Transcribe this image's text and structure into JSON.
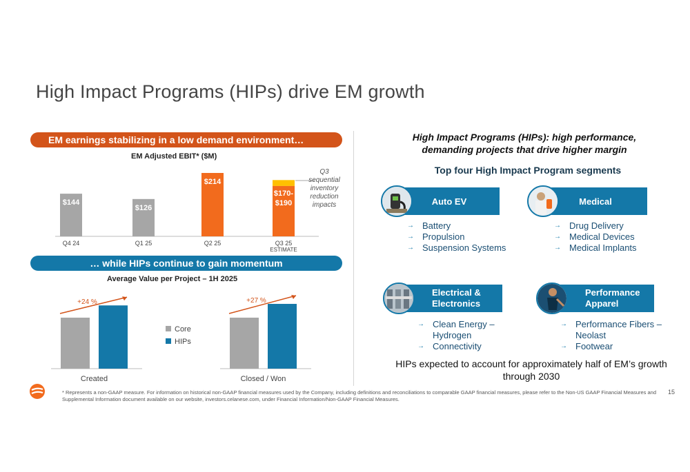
{
  "title": "High Impact Programs (HIPs) drive EM growth",
  "left": {
    "banner_top": "EM earnings stabilizing in a low demand environment…",
    "banner_bottom": "… while HIPs continue to gain momentum",
    "q3_note": "Q3 sequential inventory reduction impacts"
  },
  "chart_data": [
    {
      "type": "bar",
      "title": "EM Adjusted EBIT* ($M)",
      "categories": [
        "Q4 24",
        "Q1 25",
        "Q2 25",
        "Q3 25"
      ],
      "category_sublabels": [
        "",
        "",
        "",
        "ESTIMATE"
      ],
      "values": [
        144,
        126,
        214,
        190
      ],
      "range_low": [
        null,
        null,
        null,
        170
      ],
      "data_labels": [
        "$144",
        "$126",
        "$214",
        "$170-\n$190"
      ],
      "colors": [
        "#a6a6a6",
        "#a6a6a6",
        "#f26b1d",
        "#f26b1d"
      ],
      "range_color": "#ffc000",
      "ylim": [
        0,
        214
      ]
    },
    {
      "type": "bar",
      "title": "Average Value per Project – 1H 2025",
      "categories": [
        "Created",
        "Closed / Won"
      ],
      "series": [
        {
          "name": "Core",
          "values": [
            100,
            100
          ],
          "color": "#a6a6a6"
        },
        {
          "name": "HIPs",
          "values": [
            124,
            127
          ],
          "color": "#1478a8"
        }
      ],
      "annotations": [
        "+24 %",
        "+27 %"
      ],
      "legend": "center"
    }
  ],
  "right": {
    "heading": "High Impact Programs (HIPs): high performance, demanding projects that drive higher margin",
    "subheading": "Top four High Impact Program segments",
    "segments": [
      {
        "label": "Auto EV",
        "icon": "ev-charger-icon",
        "items": [
          "Battery",
          "Propulsion",
          "Suspension Systems"
        ]
      },
      {
        "label": "Medical",
        "icon": "medical-icon",
        "items": [
          "Drug Delivery",
          "Medical Devices",
          "Medical Implants"
        ]
      },
      {
        "label": "Electrical & Electronics",
        "icon": "electronics-icon",
        "items": [
          "Clean Energy – Hydrogen",
          "Connectivity"
        ]
      },
      {
        "label": "Performance Apparel",
        "icon": "apparel-icon",
        "items": [
          "Performance Fibers – Neolast",
          "Footwear"
        ]
      }
    ],
    "note": "HIPs expected to account for approximately half of EM’s growth through 2030"
  },
  "footer": {
    "footnote": "* Represents a non-GAAP measure. For information on historical non-GAAP financial measures used by the Company, including definitions and reconciliations to comparable GAAP financial measures, please refer to the Non-US GAAP Financial Measures and Supplemental Information document available on our website, investors.celanese.com, under Financial Information/Non-GAAP Financial Measures.",
    "page": "15"
  },
  "colors": {
    "orange": "#d3541a",
    "blue": "#1478a8",
    "grey": "#a6a6a6",
    "bar_orange": "#f26b1d",
    "gold": "#ffc000"
  }
}
